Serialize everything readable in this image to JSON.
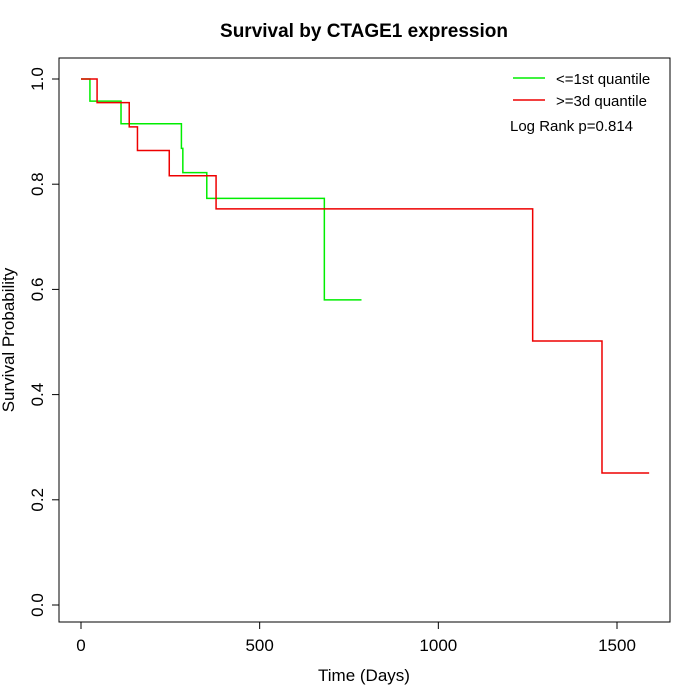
{
  "chart_data": {
    "type": "line",
    "subtype": "kaplan-meier step",
    "title": "Survival by CTAGE1 expression",
    "xlabel": "Time (Days)",
    "ylabel": "Survival Probability",
    "xlim": [
      0,
      1650
    ],
    "ylim": [
      0,
      1.0
    ],
    "x_ticks": [
      0,
      500,
      1000,
      1500
    ],
    "y_ticks": [
      0.0,
      0.2,
      0.4,
      0.6,
      0.8,
      1.0
    ],
    "x_tick_labels": [
      "0",
      "500",
      "1000",
      "1500"
    ],
    "y_tick_labels": [
      "0.0",
      "0.2",
      "0.4",
      "0.6",
      "0.8",
      "1.0"
    ],
    "grid": false,
    "legend_position": "top-right",
    "annotation": "Log Rank p=0.814",
    "series": [
      {
        "name": "<=1st quantile",
        "color": "#00ee00",
        "points": [
          [
            0,
            1.0
          ],
          [
            25,
            0.958
          ],
          [
            112,
            0.915
          ],
          [
            281,
            0.868
          ],
          [
            285,
            0.822
          ],
          [
            352,
            0.773
          ],
          [
            681,
            0.58
          ],
          [
            785,
            0.58
          ]
        ]
      },
      {
        "name": ">=3d quantile",
        "color": "#ee0000",
        "points": [
          [
            0,
            1.0
          ],
          [
            45,
            0.955
          ],
          [
            135,
            0.909
          ],
          [
            158,
            0.864
          ],
          [
            247,
            0.816
          ],
          [
            378,
            0.753
          ],
          [
            1264,
            0.502
          ],
          [
            1458,
            0.251
          ],
          [
            1590,
            0.251
          ]
        ]
      }
    ]
  }
}
